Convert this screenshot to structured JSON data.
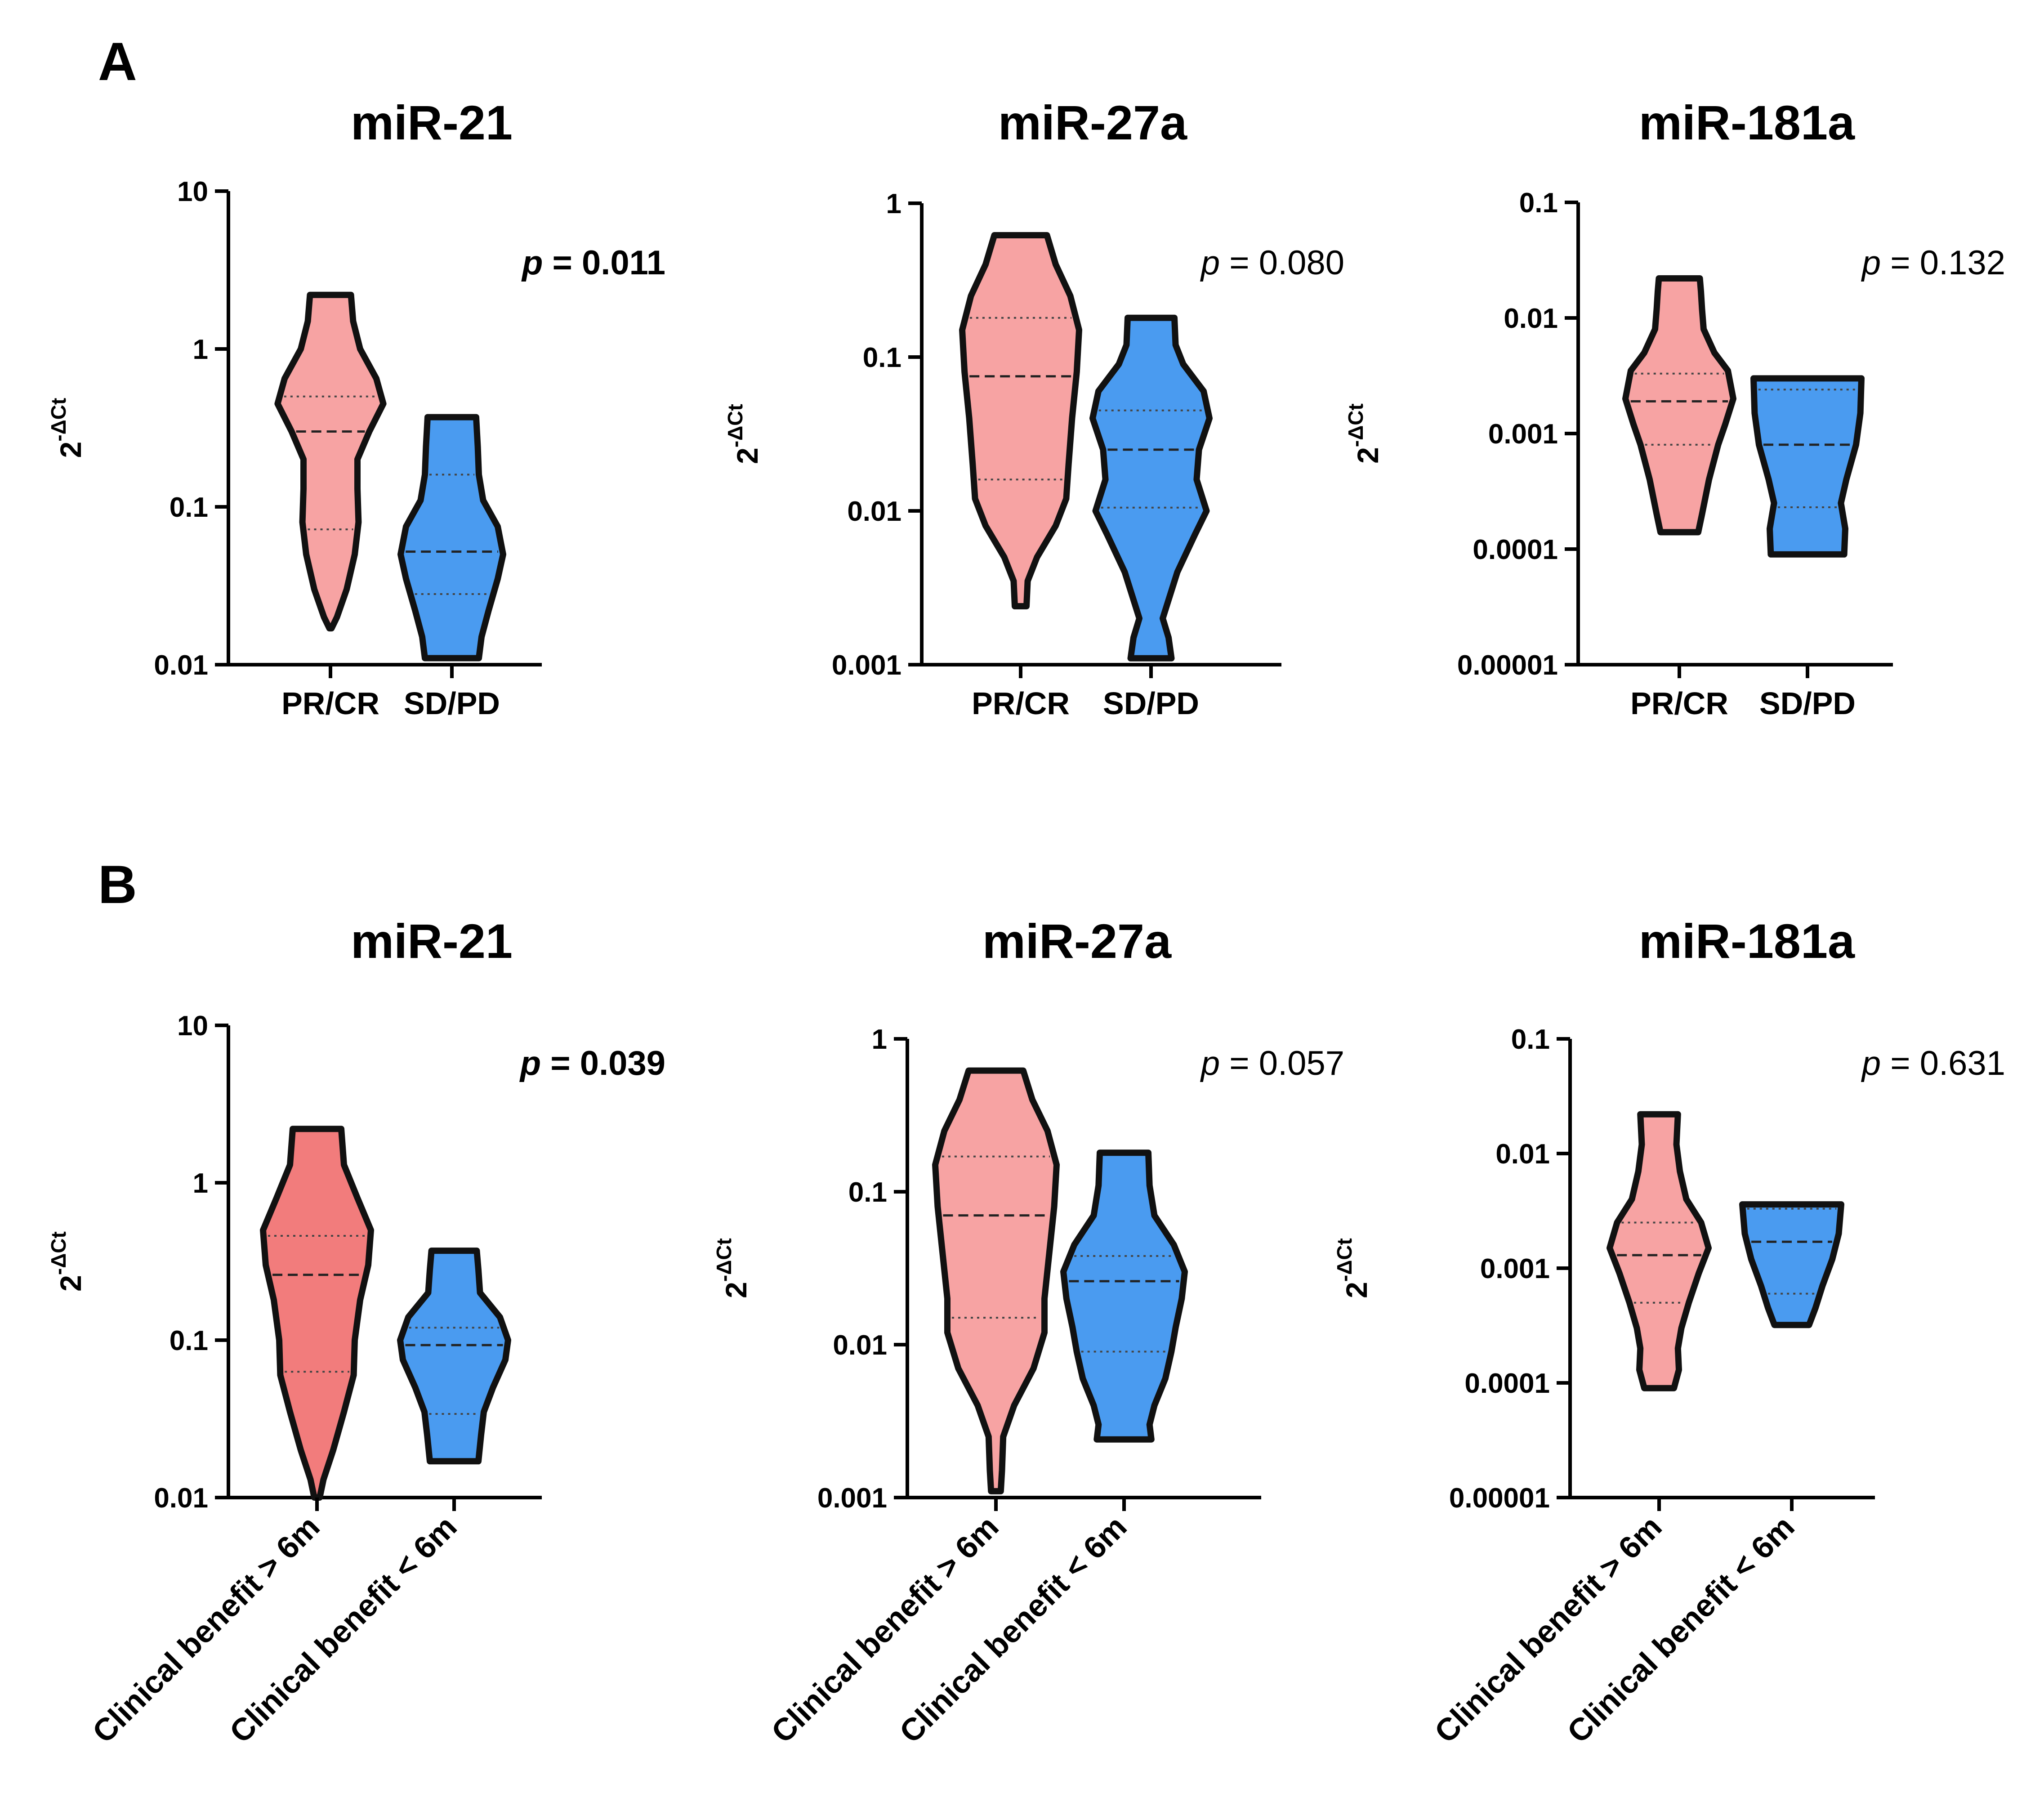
{
  "figure": {
    "panel_labels": [
      "A",
      "B"
    ],
    "y_axis_label": {
      "base": "2",
      "superscript": "-ΔCt"
    }
  },
  "colors": {
    "pink": "#f7a3a3",
    "pink_dark": "#f27c7c",
    "blue": "#4a9bf0",
    "outline": "#111111"
  },
  "chart_data": [
    {
      "type": "violin",
      "panel": "A",
      "title": "miR-21",
      "ylabel": "2^-ΔCt",
      "yscale": "log",
      "ylim": [
        0.01,
        10
      ],
      "yticks": [
        "0.01",
        "0.1",
        "1",
        "10"
      ],
      "categories": [
        "PR/CR",
        "SD/PD"
      ],
      "p_value": {
        "prefix": "p",
        "text": " = 0.011",
        "bold": true
      },
      "series": [
        {
          "name": "PR/CR",
          "color": "#f7a3a3",
          "min": 0.017,
          "max": 2.2,
          "q1": 0.072,
          "median": 0.3,
          "q3": 0.5,
          "profile": [
            [
              0.017,
              0.02
            ],
            [
              0.02,
              0.12
            ],
            [
              0.03,
              0.3
            ],
            [
              0.05,
              0.45
            ],
            [
              0.08,
              0.52
            ],
            [
              0.13,
              0.5
            ],
            [
              0.2,
              0.5
            ],
            [
              0.3,
              0.72
            ],
            [
              0.45,
              0.98
            ],
            [
              0.65,
              0.85
            ],
            [
              1.0,
              0.55
            ],
            [
              1.5,
              0.42
            ],
            [
              2.2,
              0.38
            ]
          ]
        },
        {
          "name": "SD/PD",
          "color": "#4a9bf0",
          "min": 0.011,
          "max": 0.37,
          "q1": 0.028,
          "median": 0.052,
          "q3": 0.16,
          "profile": [
            [
              0.011,
              0.5
            ],
            [
              0.015,
              0.55
            ],
            [
              0.022,
              0.68
            ],
            [
              0.035,
              0.85
            ],
            [
              0.05,
              0.95
            ],
            [
              0.075,
              0.85
            ],
            [
              0.11,
              0.58
            ],
            [
              0.16,
              0.5
            ],
            [
              0.24,
              0.48
            ],
            [
              0.37,
              0.45
            ]
          ]
        }
      ]
    },
    {
      "type": "violin",
      "panel": "A",
      "title": "miR-27a",
      "ylabel": "2^-ΔCt",
      "yscale": "log",
      "ylim": [
        0.001,
        1
      ],
      "yticks": [
        "0.001",
        "0.01",
        "0.1",
        "1"
      ],
      "categories": [
        "PR/CR",
        "SD/PD"
      ],
      "p_value": {
        "prefix": "p",
        "text": " = 0.080",
        "bold": false
      },
      "series": [
        {
          "name": "PR/CR",
          "color": "#f7a3a3",
          "min": 0.0024,
          "max": 0.62,
          "q1": 0.016,
          "median": 0.075,
          "q3": 0.18,
          "profile": [
            [
              0.0024,
              0.1
            ],
            [
              0.0035,
              0.12
            ],
            [
              0.005,
              0.28
            ],
            [
              0.008,
              0.6
            ],
            [
              0.012,
              0.78
            ],
            [
              0.02,
              0.82
            ],
            [
              0.04,
              0.88
            ],
            [
              0.08,
              0.96
            ],
            [
              0.15,
              1.0
            ],
            [
              0.25,
              0.85
            ],
            [
              0.4,
              0.6
            ],
            [
              0.62,
              0.45
            ]
          ]
        },
        {
          "name": "SD/PD",
          "color": "#4a9bf0",
          "min": 0.0011,
          "max": 0.18,
          "q1": 0.0105,
          "median": 0.025,
          "q3": 0.045,
          "profile": [
            [
              0.0011,
              0.35
            ],
            [
              0.0015,
              0.3
            ],
            [
              0.002,
              0.2
            ],
            [
              0.004,
              0.45
            ],
            [
              0.007,
              0.75
            ],
            [
              0.01,
              0.95
            ],
            [
              0.016,
              0.78
            ],
            [
              0.025,
              0.82
            ],
            [
              0.04,
              1.0
            ],
            [
              0.06,
              0.9
            ],
            [
              0.09,
              0.55
            ],
            [
              0.12,
              0.42
            ],
            [
              0.18,
              0.4
            ]
          ]
        }
      ]
    },
    {
      "type": "violin",
      "panel": "A",
      "title": "miR-181a",
      "ylabel": "2^-ΔCt",
      "yscale": "log",
      "ylim": [
        1e-05,
        0.1
      ],
      "yticks": [
        "0.00001",
        "0.0001",
        "0.001",
        "0.01",
        "0.1"
      ],
      "categories": [
        "PR/CR",
        "SD/PD"
      ],
      "p_value": {
        "prefix": "p",
        "text": " = 0.132",
        "bold": false
      },
      "series": [
        {
          "name": "PR/CR",
          "color": "#f7a3a3",
          "min": 0.00014,
          "max": 0.022,
          "q1": 0.0008,
          "median": 0.0019,
          "q3": 0.0033,
          "profile": [
            [
              0.00014,
              0.35
            ],
            [
              0.0002,
              0.42
            ],
            [
              0.0004,
              0.55
            ],
            [
              0.0008,
              0.72
            ],
            [
              0.0012,
              0.85
            ],
            [
              0.002,
              1.0
            ],
            [
              0.0035,
              0.9
            ],
            [
              0.005,
              0.65
            ],
            [
              0.008,
              0.45
            ],
            [
              0.012,
              0.42
            ],
            [
              0.017,
              0.4
            ],
            [
              0.022,
              0.38
            ]
          ]
        },
        {
          "name": "SD/PD",
          "color": "#4a9bf0",
          "min": 9e-05,
          "max": 0.003,
          "q1": 0.00023,
          "median": 0.0008,
          "q3": 0.0024,
          "profile": [
            [
              9e-05,
              0.68
            ],
            [
              0.00015,
              0.7
            ],
            [
              0.00025,
              0.62
            ],
            [
              0.0004,
              0.72
            ],
            [
              0.0008,
              0.9
            ],
            [
              0.0015,
              0.98
            ],
            [
              0.003,
              1.0
            ]
          ]
        }
      ]
    },
    {
      "type": "violin",
      "panel": "B",
      "title": "miR-21",
      "ylabel": "2^-ΔCt",
      "yscale": "log",
      "ylim": [
        0.01,
        10
      ],
      "yticks": [
        "0.01",
        "0.1",
        "1",
        "10"
      ],
      "categories": [
        "Clinical benefit > 6m",
        "Clinical benefit < 6m"
      ],
      "p_value": {
        "prefix": "p",
        "text": " = 0.039",
        "bold": true
      },
      "series": [
        {
          "name": "Clinical benefit > 6m",
          "color": "#f27c7c",
          "min": 0.01,
          "max": 2.2,
          "q1": 0.063,
          "median": 0.26,
          "q3": 0.46,
          "profile": [
            [
              0.01,
              0.05
            ],
            [
              0.013,
              0.12
            ],
            [
              0.02,
              0.3
            ],
            [
              0.035,
              0.5
            ],
            [
              0.06,
              0.68
            ],
            [
              0.1,
              0.7
            ],
            [
              0.18,
              0.8
            ],
            [
              0.3,
              0.95
            ],
            [
              0.5,
              1.0
            ],
            [
              0.8,
              0.75
            ],
            [
              1.3,
              0.5
            ],
            [
              2.2,
              0.45
            ]
          ]
        },
        {
          "name": "Clinical benefit < 6m",
          "color": "#4a9bf0",
          "min": 0.017,
          "max": 0.37,
          "q1": 0.034,
          "median": 0.093,
          "q3": 0.12,
          "profile": [
            [
              0.017,
              0.45
            ],
            [
              0.025,
              0.5
            ],
            [
              0.035,
              0.55
            ],
            [
              0.05,
              0.72
            ],
            [
              0.075,
              0.95
            ],
            [
              0.1,
              1.0
            ],
            [
              0.14,
              0.85
            ],
            [
              0.2,
              0.48
            ],
            [
              0.28,
              0.45
            ],
            [
              0.37,
              0.42
            ]
          ]
        }
      ]
    },
    {
      "type": "violin",
      "panel": "B",
      "title": "miR-27a",
      "ylabel": "2^-ΔCt",
      "yscale": "log",
      "ylim": [
        0.001,
        1
      ],
      "yticks": [
        "0.001",
        "0.01",
        "0.1",
        "1"
      ],
      "categories": [
        "Clinical benefit > 6m",
        "Clinical benefit < 6m"
      ],
      "p_value": {
        "prefix": "p",
        "text": " = 0.057",
        "bold": false
      },
      "series": [
        {
          "name": "Clinical benefit > 6m",
          "color": "#f7a3a3",
          "min": 0.0011,
          "max": 0.62,
          "q1": 0.015,
          "median": 0.07,
          "q3": 0.17,
          "profile": [
            [
              0.0011,
              0.08
            ],
            [
              0.0015,
              0.1
            ],
            [
              0.0025,
              0.12
            ],
            [
              0.004,
              0.3
            ],
            [
              0.007,
              0.62
            ],
            [
              0.012,
              0.8
            ],
            [
              0.02,
              0.8
            ],
            [
              0.04,
              0.88
            ],
            [
              0.08,
              0.96
            ],
            [
              0.15,
              1.0
            ],
            [
              0.25,
              0.85
            ],
            [
              0.4,
              0.6
            ],
            [
              0.62,
              0.45
            ]
          ]
        },
        {
          "name": "Clinical benefit < 6m",
          "color": "#4a9bf0",
          "min": 0.0024,
          "max": 0.18,
          "q1": 0.009,
          "median": 0.026,
          "q3": 0.038,
          "profile": [
            [
              0.0024,
              0.45
            ],
            [
              0.003,
              0.42
            ],
            [
              0.004,
              0.5
            ],
            [
              0.006,
              0.68
            ],
            [
              0.009,
              0.78
            ],
            [
              0.013,
              0.85
            ],
            [
              0.02,
              0.95
            ],
            [
              0.03,
              1.0
            ],
            [
              0.045,
              0.82
            ],
            [
              0.07,
              0.5
            ],
            [
              0.11,
              0.42
            ],
            [
              0.18,
              0.4
            ]
          ]
        }
      ]
    },
    {
      "type": "violin",
      "panel": "B",
      "title": "miR-181a",
      "ylabel": "2^-ΔCt",
      "yscale": "log",
      "ylim": [
        1e-05,
        0.1
      ],
      "yticks": [
        "0.00001",
        "0.0001",
        "0.001",
        "0.01",
        "0.1"
      ],
      "categories": [
        "Clinical benefit > 6m",
        "Clinical benefit < 6m"
      ],
      "p_value": {
        "prefix": "p",
        "text": " = 0.631",
        "bold": false
      },
      "series": [
        {
          "name": "Clinical benefit > 6m",
          "color": "#f7a3a3",
          "min": 9e-05,
          "max": 0.022,
          "q1": 0.0005,
          "median": 0.0013,
          "q3": 0.0025,
          "profile": [
            [
              9e-05,
              0.3
            ],
            [
              0.00013,
              0.4
            ],
            [
              0.0002,
              0.38
            ],
            [
              0.0003,
              0.45
            ],
            [
              0.0005,
              0.6
            ],
            [
              0.0009,
              0.8
            ],
            [
              0.0015,
              1.0
            ],
            [
              0.0025,
              0.85
            ],
            [
              0.004,
              0.55
            ],
            [
              0.007,
              0.42
            ],
            [
              0.012,
              0.35
            ],
            [
              0.022,
              0.38
            ]
          ]
        },
        {
          "name": "Clinical benefit < 6m",
          "color": "#4a9bf0",
          "min": 0.00032,
          "max": 0.0036,
          "q1": 0.0006,
          "median": 0.0017,
          "q3": 0.0033,
          "profile": [
            [
              0.00032,
              0.35
            ],
            [
              0.00045,
              0.48
            ],
            [
              0.0007,
              0.62
            ],
            [
              0.0012,
              0.82
            ],
            [
              0.002,
              0.95
            ],
            [
              0.0036,
              1.0
            ]
          ]
        }
      ]
    }
  ]
}
